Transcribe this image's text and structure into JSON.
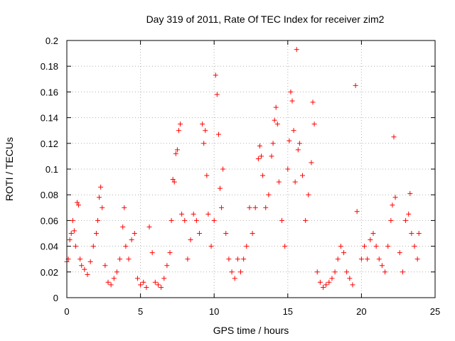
{
  "chart_data": {
    "type": "scatter",
    "title": "Day 319 of 2011, Rate Of TEC Index for receiver zim2",
    "xlabel": "GPS time / hours",
    "ylabel": "ROTI / TECUs",
    "xlim": [
      0,
      25
    ],
    "ylim": [
      0,
      0.2
    ],
    "x_ticks": [
      "0",
      "5",
      "10",
      "15",
      "20",
      "25"
    ],
    "y_ticks": [
      "0",
      "0.02",
      "0.04",
      "0.06",
      "0.08",
      "0.1",
      "0.12",
      "0.14",
      "0.16",
      "0.18",
      "0.2"
    ],
    "grid": true,
    "marker": "+",
    "color": "#ff0000",
    "series": [
      {
        "values": [
          [
            0.0,
            0.028
          ],
          [
            0.1,
            0.03
          ],
          [
            0.2,
            0.045
          ],
          [
            0.3,
            0.05
          ],
          [
            0.4,
            0.06
          ],
          [
            0.5,
            0.052
          ],
          [
            0.6,
            0.04
          ],
          [
            0.7,
            0.074
          ],
          [
            0.8,
            0.072
          ],
          [
            0.9,
            0.03
          ],
          [
            1.0,
            0.025
          ],
          [
            1.2,
            0.022
          ],
          [
            1.4,
            0.018
          ],
          [
            1.6,
            0.028
          ],
          [
            1.8,
            0.04
          ],
          [
            2.0,
            0.05
          ],
          [
            2.1,
            0.06
          ],
          [
            2.2,
            0.078
          ],
          [
            2.3,
            0.086
          ],
          [
            2.4,
            0.07
          ],
          [
            2.6,
            0.025
          ],
          [
            2.8,
            0.012
          ],
          [
            3.0,
            0.01
          ],
          [
            3.2,
            0.015
          ],
          [
            3.4,
            0.02
          ],
          [
            3.6,
            0.03
          ],
          [
            3.8,
            0.055
          ],
          [
            3.9,
            0.07
          ],
          [
            4.0,
            0.04
          ],
          [
            4.2,
            0.03
          ],
          [
            4.4,
            0.045
          ],
          [
            4.6,
            0.05
          ],
          [
            4.8,
            0.015
          ],
          [
            5.0,
            0.01
          ],
          [
            5.2,
            0.012
          ],
          [
            5.4,
            0.008
          ],
          [
            5.6,
            0.055
          ],
          [
            5.8,
            0.035
          ],
          [
            6.0,
            0.012
          ],
          [
            6.2,
            0.01
          ],
          [
            6.4,
            0.008
          ],
          [
            6.6,
            0.015
          ],
          [
            6.8,
            0.025
          ],
          [
            7.0,
            0.035
          ],
          [
            7.1,
            0.06
          ],
          [
            7.2,
            0.092
          ],
          [
            7.3,
            0.09
          ],
          [
            7.4,
            0.112
          ],
          [
            7.5,
            0.115
          ],
          [
            7.6,
            0.13
          ],
          [
            7.7,
            0.135
          ],
          [
            7.8,
            0.065
          ],
          [
            8.0,
            0.06
          ],
          [
            8.2,
            0.03
          ],
          [
            8.4,
            0.045
          ],
          [
            8.6,
            0.065
          ],
          [
            8.8,
            0.06
          ],
          [
            9.0,
            0.05
          ],
          [
            9.2,
            0.135
          ],
          [
            9.3,
            0.12
          ],
          [
            9.4,
            0.13
          ],
          [
            9.5,
            0.095
          ],
          [
            9.6,
            0.065
          ],
          [
            9.8,
            0.04
          ],
          [
            10.0,
            0.06
          ],
          [
            10.1,
            0.173
          ],
          [
            10.2,
            0.158
          ],
          [
            10.3,
            0.127
          ],
          [
            10.4,
            0.085
          ],
          [
            10.5,
            0.07
          ],
          [
            10.6,
            0.1
          ],
          [
            10.8,
            0.05
          ],
          [
            11.0,
            0.03
          ],
          [
            11.2,
            0.02
          ],
          [
            11.4,
            0.015
          ],
          [
            11.6,
            0.03
          ],
          [
            11.8,
            0.02
          ],
          [
            12.0,
            0.03
          ],
          [
            12.2,
            0.04
          ],
          [
            12.4,
            0.07
          ],
          [
            12.6,
            0.05
          ],
          [
            12.8,
            0.07
          ],
          [
            13.0,
            0.108
          ],
          [
            13.1,
            0.118
          ],
          [
            13.2,
            0.11
          ],
          [
            13.3,
            0.095
          ],
          [
            13.5,
            0.07
          ],
          [
            13.7,
            0.08
          ],
          [
            13.9,
            0.11
          ],
          [
            14.0,
            0.12
          ],
          [
            14.1,
            0.138
          ],
          [
            14.2,
            0.148
          ],
          [
            14.3,
            0.135
          ],
          [
            14.4,
            0.09
          ],
          [
            14.6,
            0.06
          ],
          [
            14.8,
            0.04
          ],
          [
            15.0,
            0.1
          ],
          [
            15.1,
            0.122
          ],
          [
            15.2,
            0.16
          ],
          [
            15.3,
            0.153
          ],
          [
            15.4,
            0.13
          ],
          [
            15.5,
            0.09
          ],
          [
            15.6,
            0.193
          ],
          [
            15.7,
            0.115
          ],
          [
            15.8,
            0.12
          ],
          [
            16.0,
            0.095
          ],
          [
            16.2,
            0.06
          ],
          [
            16.4,
            0.08
          ],
          [
            16.6,
            0.105
          ],
          [
            16.7,
            0.152
          ],
          [
            16.8,
            0.135
          ],
          [
            17.0,
            0.02
          ],
          [
            17.2,
            0.012
          ],
          [
            17.4,
            0.008
          ],
          [
            17.6,
            0.01
          ],
          [
            17.8,
            0.012
          ],
          [
            18.0,
            0.015
          ],
          [
            18.2,
            0.02
          ],
          [
            18.4,
            0.03
          ],
          [
            18.6,
            0.04
          ],
          [
            18.8,
            0.035
          ],
          [
            19.0,
            0.02
          ],
          [
            19.2,
            0.015
          ],
          [
            19.4,
            0.01
          ],
          [
            19.6,
            0.165
          ],
          [
            19.7,
            0.067
          ],
          [
            20.0,
            0.03
          ],
          [
            20.2,
            0.04
          ],
          [
            20.4,
            0.03
          ],
          [
            20.6,
            0.045
          ],
          [
            20.8,
            0.05
          ],
          [
            21.0,
            0.04
          ],
          [
            21.2,
            0.03
          ],
          [
            21.4,
            0.025
          ],
          [
            21.6,
            0.02
          ],
          [
            21.8,
            0.04
          ],
          [
            22.0,
            0.06
          ],
          [
            22.1,
            0.072
          ],
          [
            22.2,
            0.125
          ],
          [
            22.3,
            0.078
          ],
          [
            22.6,
            0.035
          ],
          [
            22.8,
            0.02
          ],
          [
            23.0,
            0.06
          ],
          [
            23.2,
            0.065
          ],
          [
            23.3,
            0.081
          ],
          [
            23.4,
            0.05
          ],
          [
            23.6,
            0.04
          ],
          [
            23.8,
            0.03
          ],
          [
            23.9,
            0.05
          ]
        ]
      }
    ]
  }
}
